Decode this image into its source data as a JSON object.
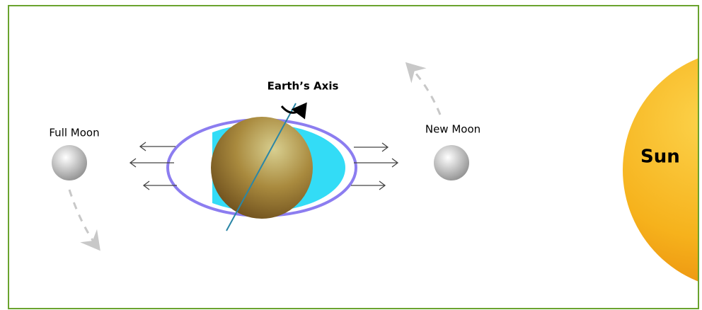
{
  "labels": {
    "earth_axis": "Earth’s Axis",
    "full_moon": "Full Moon",
    "new_moon": "New Moon",
    "sun": "Sun"
  }
}
